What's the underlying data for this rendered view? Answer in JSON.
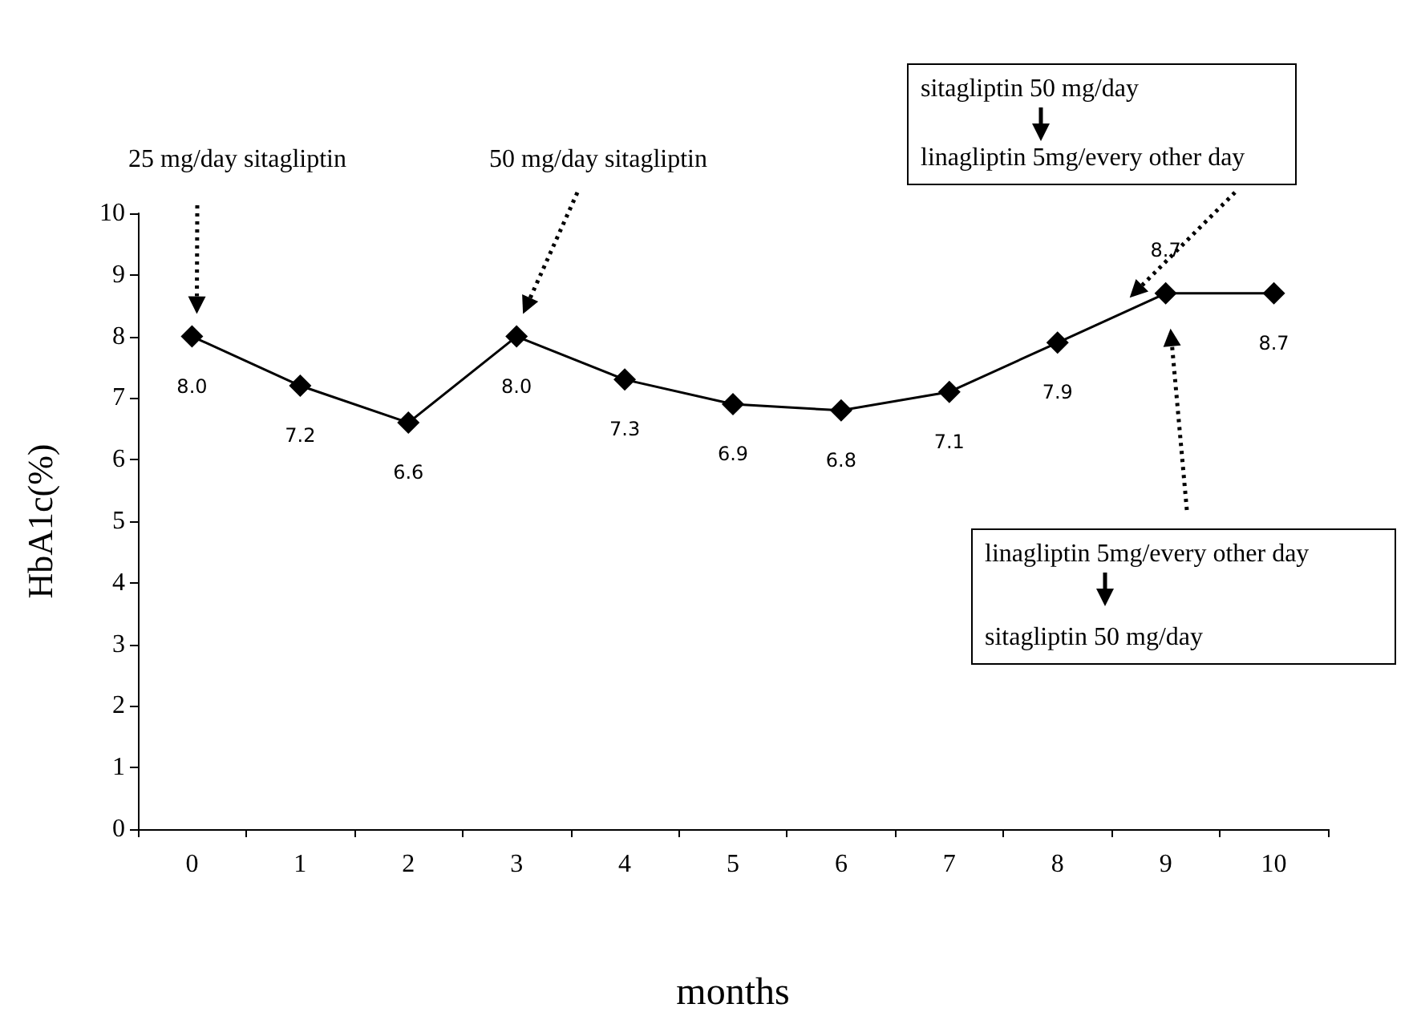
{
  "chart_data": {
    "type": "line",
    "xlabel": "months",
    "ylabel": "HbA1c(%)",
    "categories": [
      "0",
      "1",
      "2",
      "3",
      "4",
      "5",
      "6",
      "7",
      "8",
      "9",
      "10"
    ],
    "series": [
      {
        "color": "#000000",
        "values": [
          8.0,
          7.2,
          6.6,
          8.0,
          7.3,
          6.9,
          6.8,
          7.1,
          7.9,
          8.7,
          8.7
        ],
        "value_labels": [
          "8.0",
          "7.2",
          "6.6",
          "8.0",
          "7.3",
          "6.9",
          "6.8",
          "7.1",
          "7.9",
          "8.7",
          "8.7"
        ]
      }
    ],
    "ylim": [
      0,
      10
    ],
    "yticks": [
      0,
      1,
      2,
      3,
      4,
      5,
      6,
      7,
      8,
      9,
      10
    ],
    "grid": false,
    "marker": "diamond",
    "line_style": "solid",
    "annotations": [
      "25 mg/day sitagliptin",
      "50 mg/day sitagliptin",
      "sitagliptin 50 mg/day",
      "linagliptin 5mg/every other day",
      "linagliptin 5mg/every other day",
      "sitagliptin 50 mg/day"
    ]
  }
}
